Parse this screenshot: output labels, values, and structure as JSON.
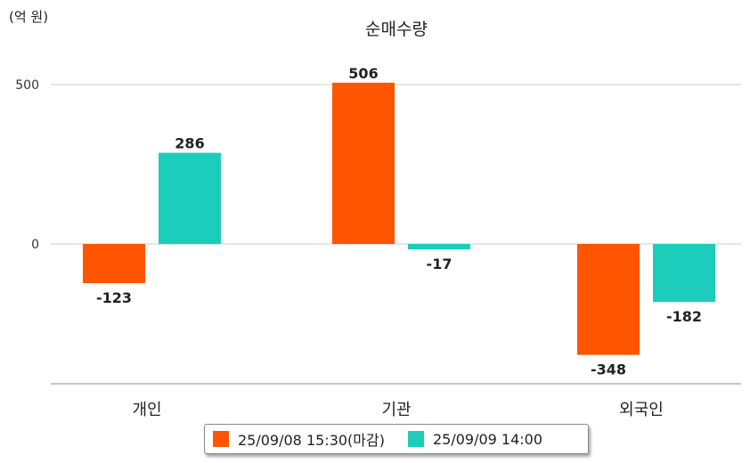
{
  "chart_data": {
    "type": "bar",
    "title": "순매수량",
    "unit_label": "(억 원)",
    "categories": [
      "개인",
      "기관",
      "외국인"
    ],
    "series": [
      {
        "name": "25/09/08 15:30(마감)",
        "color": "#ff5500",
        "values": [
          -123,
          506,
          -348
        ]
      },
      {
        "name": "25/09/09 14:00",
        "color": "#1dcdbc",
        "values": [
          286,
          -17,
          -182
        ]
      }
    ],
    "y_ticks": [
      0,
      500
    ],
    "ylim": [
      -430,
      600
    ],
    "grid": true,
    "legend_position": "bottom"
  }
}
